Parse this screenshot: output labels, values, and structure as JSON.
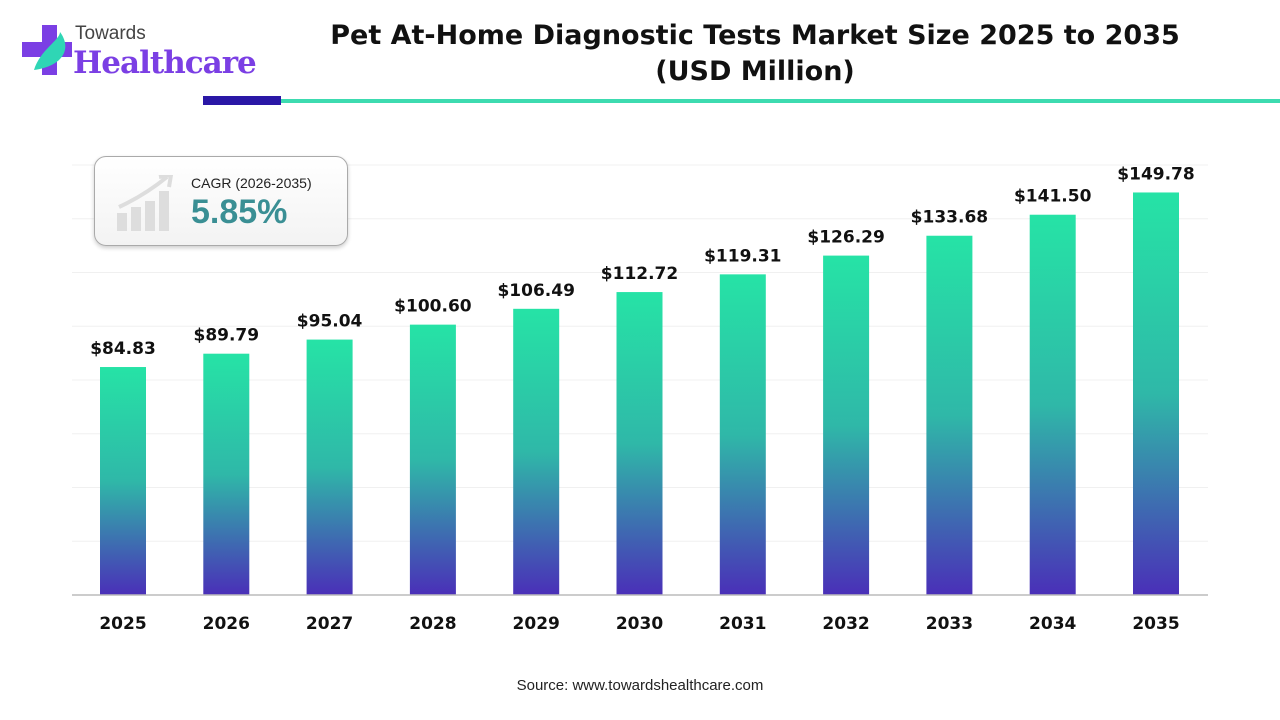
{
  "brand": {
    "line1": "Towards",
    "line2": "Healthcare"
  },
  "title_line1": "Pet At-Home Diagnostic Tests Market Size 2025 to 2035",
  "title_line2": "(USD Million)",
  "cagr": {
    "label": "CAGR (2026-2035)",
    "value": "5.85%",
    "icon": "growth-chart-icon"
  },
  "source": "Source: www.towardshealthcare.com",
  "colors": {
    "bar_top": "#26e3a6",
    "bar_bottom": "#4a2fb8",
    "cagr_value": "#3a8f94",
    "brand": "#7b3fe4"
  },
  "chart_data": {
    "type": "bar",
    "title": "Pet At-Home Diagnostic Tests Market Size 2025 to 2035 (USD Million)",
    "categories": [
      "2025",
      "2026",
      "2027",
      "2028",
      "2029",
      "2030",
      "2031",
      "2032",
      "2033",
      "2034",
      "2035"
    ],
    "values": [
      84.83,
      89.79,
      95.04,
      100.6,
      106.49,
      112.72,
      119.31,
      126.29,
      133.68,
      141.5,
      149.78
    ],
    "labels": [
      "$84.83",
      "$89.79",
      "$95.04",
      "$100.60",
      "$106.49",
      "$112.72",
      "$119.31",
      "$126.29",
      "$133.68",
      "$141.50",
      "$149.78"
    ],
    "xlabel": "",
    "ylabel": "",
    "ylim": [
      0,
      160
    ],
    "grid": true,
    "legend": "none"
  }
}
